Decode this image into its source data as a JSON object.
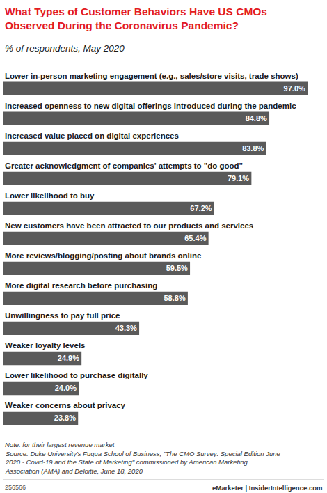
{
  "chart_data": {
    "type": "bar",
    "orientation": "horizontal",
    "title": [
      "What Types of Customer Behaviors Have US CMOs",
      "Observed During the Coronavirus Pandemic?"
    ],
    "subtitle": "% of respondents, May 2020",
    "categories": [
      "Lower in-person marketing engagement (e.g., sales/store visits, trade shows)",
      "Increased openness to new digital offerings introduced during the pandemic",
      "Increased value placed on digital experiences",
      "Greater acknowledgment of companies' attempts to \"do good\"",
      "Lower likelihood to buy",
      "New customers have been attracted to our products and services",
      "More reviews/blogging/posting about brands online",
      "More digital research before purchasing",
      "Unwillingness to pay full price",
      "Weaker loyalty levels",
      "Lower likelihood to purchase digitally",
      "Weaker concerns about privacy"
    ],
    "values": [
      97,
      84.8,
      83.8,
      79.1,
      67.2,
      65.4,
      59.5,
      58.8,
      43.3,
      24.9,
      24,
      23.8
    ],
    "value_labels": [
      "97.0%",
      "84.8%",
      "83.8%",
      "79.1%",
      "67.2%",
      "65.4%",
      "59.5%",
      "58.8%",
      "43.3%",
      "24.9%",
      "24.0%",
      "23.8%"
    ],
    "color": "#5a5a5a",
    "data_labels": true,
    "tick_labels": false,
    "grid": false,
    "note": "Note: for their largest revenue market",
    "source": [
      "Source: Duke University's Fuqua School of Business, \"The CMO Survey: Special Edition June",
      "2020 - Covid-19 and the State of Marketing\" commissioned by American Marketing",
      "Association (AMA) and Deloitte, June 18, 2020"
    ],
    "chart_id": "256566",
    "credit": "eMarketer | InsiderIntelligence.com"
  }
}
